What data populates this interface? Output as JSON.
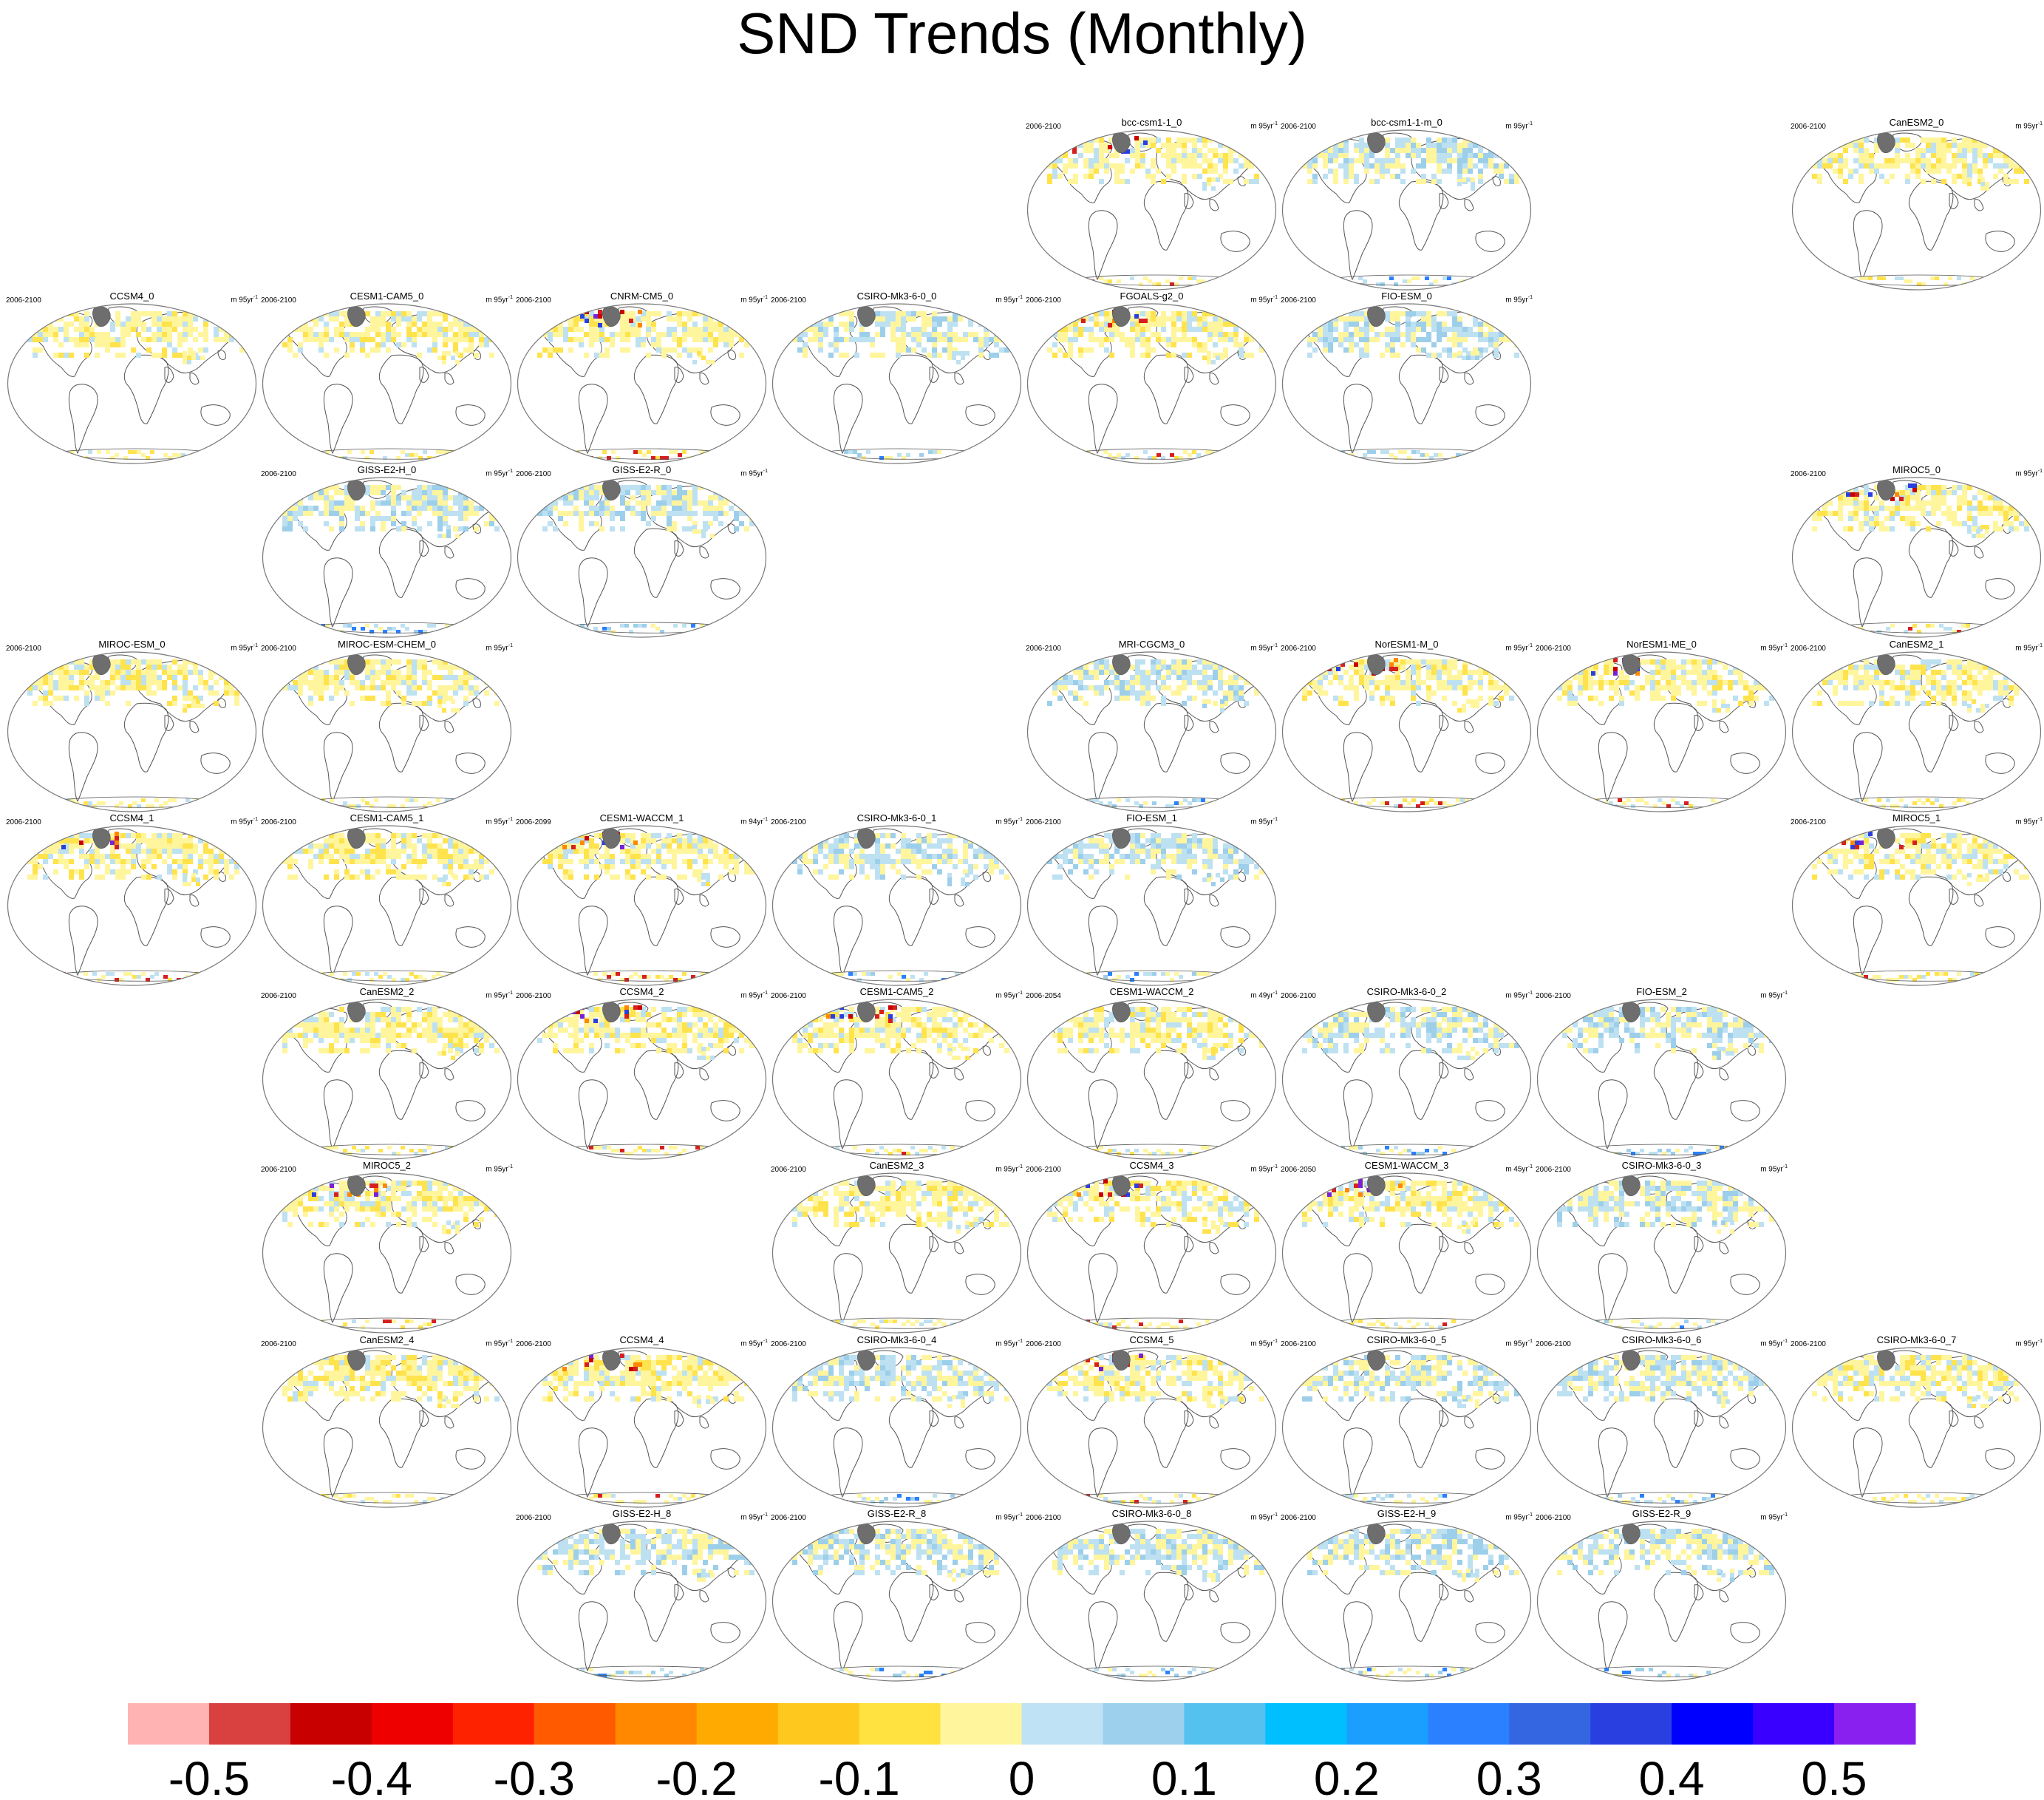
{
  "title": "SND Trends (Monthly)",
  "period_default": "2006-2100",
  "units_default": "m 95yr",
  "units_exp": "-1",
  "colors": {
    "outline": "#777777",
    "land": "#555555",
    "greenland": "#6e6e6e",
    "pale_yellow": "#fff59d",
    "yellow": "#ffe34d",
    "light_blue": "#bee1f2",
    "blue": "#9dcfea",
    "red": "#d62020",
    "purple": "#7a20d8"
  },
  "panels": [
    {
      "title": "bcc-csm1-1_0",
      "row": 0,
      "col": 4,
      "style": "mixedRed"
    },
    {
      "title": "bcc-csm1-1-m_0",
      "row": 0,
      "col": 5,
      "style": "blue"
    },
    {
      "title": "CanESM2_0",
      "row": 0,
      "col": 7,
      "style": "yellow"
    },
    {
      "title": "CCSM4_0",
      "row": 1,
      "col": 0,
      "style": "yellow"
    },
    {
      "title": "CESM1-CAM5_0",
      "row": 1,
      "col": 1,
      "style": "yellow"
    },
    {
      "title": "CNRM-CM5_0",
      "row": 1,
      "col": 2,
      "style": "mixedRed"
    },
    {
      "title": "CSIRO-Mk3-6-0_0",
      "row": 1,
      "col": 3,
      "style": "blue"
    },
    {
      "title": "FGOALS-g2_0",
      "row": 1,
      "col": 4,
      "style": "mixedRed"
    },
    {
      "title": "FIO-ESM_0",
      "row": 1,
      "col": 5,
      "style": "blue"
    },
    {
      "title": "GISS-E2-H_0",
      "row": 2,
      "col": 1,
      "style": "blue"
    },
    {
      "title": "GISS-E2-R_0",
      "row": 2,
      "col": 2,
      "style": "blue"
    },
    {
      "title": "MIROC5_0",
      "row": 2,
      "col": 7,
      "style": "mixedRed"
    },
    {
      "title": "MIROC-ESM_0",
      "row": 3,
      "col": 0,
      "style": "yellow"
    },
    {
      "title": "MIROC-ESM-CHEM_0",
      "row": 3,
      "col": 1,
      "style": "yellow"
    },
    {
      "title": "MRI-CGCM3_0",
      "row": 3,
      "col": 4,
      "style": "blue"
    },
    {
      "title": "NorESM1-M_0",
      "row": 3,
      "col": 5,
      "style": "mixedRed"
    },
    {
      "title": "NorESM1-ME_0",
      "row": 3,
      "col": 6,
      "style": "mixedRed"
    },
    {
      "title": "CanESM2_1",
      "row": 3,
      "col": 7,
      "style": "yellow"
    },
    {
      "title": "CCSM4_1",
      "row": 4,
      "col": 0,
      "style": "mixedRed"
    },
    {
      "title": "CESM1-CAM5_1",
      "row": 4,
      "col": 1,
      "style": "yellow"
    },
    {
      "title": "CESM1-WACCM_1",
      "row": 4,
      "col": 2,
      "style": "mixedRed",
      "period": "2006-2099",
      "units": "m 94yr"
    },
    {
      "title": "CSIRO-Mk3-6-0_1",
      "row": 4,
      "col": 3,
      "style": "blue"
    },
    {
      "title": "FIO-ESM_1",
      "row": 4,
      "col": 4,
      "style": "blue"
    },
    {
      "title": "MIROC5_1",
      "row": 4,
      "col": 7,
      "style": "mixedRed"
    },
    {
      "title": "CanESM2_2",
      "row": 5,
      "col": 1,
      "style": "yellow"
    },
    {
      "title": "CCSM4_2",
      "row": 5,
      "col": 2,
      "style": "mixedRed"
    },
    {
      "title": "CESM1-CAM5_2",
      "row": 5,
      "col": 3,
      "style": "mixedRed"
    },
    {
      "title": "CESM1-WACCM_2",
      "row": 5,
      "col": 4,
      "style": "yellow",
      "period": "2006-2054",
      "units": "m 49yr"
    },
    {
      "title": "CSIRO-Mk3-6-0_2",
      "row": 5,
      "col": 5,
      "style": "blue"
    },
    {
      "title": "FIO-ESM_2",
      "row": 5,
      "col": 6,
      "style": "blue"
    },
    {
      "title": "MIROC5_2",
      "row": 6,
      "col": 1,
      "style": "mixedRed"
    },
    {
      "title": "CanESM2_3",
      "row": 6,
      "col": 3,
      "style": "yellow"
    },
    {
      "title": "CCSM4_3",
      "row": 6,
      "col": 4,
      "style": "mixedRed"
    },
    {
      "title": "CESM1-WACCM_3",
      "row": 6,
      "col": 5,
      "style": "mixedRed",
      "period": "2006-2050",
      "units": "m 45yr"
    },
    {
      "title": "CSIRO-Mk3-6-0_3",
      "row": 6,
      "col": 6,
      "style": "blue"
    },
    {
      "title": "CanESM2_4",
      "row": 7,
      "col": 1,
      "style": "yellow"
    },
    {
      "title": "CCSM4_4",
      "row": 7,
      "col": 2,
      "style": "mixedRed"
    },
    {
      "title": "CSIRO-Mk3-6-0_4",
      "row": 7,
      "col": 3,
      "style": "blue"
    },
    {
      "title": "CCSM4_5",
      "row": 7,
      "col": 4,
      "style": "mixedRed"
    },
    {
      "title": "CSIRO-Mk3-6-0_5",
      "row": 7,
      "col": 5,
      "style": "blue"
    },
    {
      "title": "CSIRO-Mk3-6-0_6",
      "row": 7,
      "col": 6,
      "style": "blue"
    },
    {
      "title": "CSIRO-Mk3-6-0_7",
      "row": 7,
      "col": 7,
      "style": "yellow"
    },
    {
      "title": "GISS-E2-H_8",
      "row": 8,
      "col": 2,
      "style": "blue"
    },
    {
      "title": "GISS-E2-R_8",
      "row": 8,
      "col": 3,
      "style": "blue"
    },
    {
      "title": "CSIRO-Mk3-6-0_8",
      "row": 8,
      "col": 4,
      "style": "blue"
    },
    {
      "title": "GISS-E2-H_9",
      "row": 8,
      "col": 5,
      "style": "blue"
    },
    {
      "title": "GISS-E2-R_9",
      "row": 8,
      "col": 6,
      "style": "blue"
    }
  ],
  "colorbar": {
    "colors": [
      "#ffb3b3",
      "#d94040",
      "#c80000",
      "#ee0000",
      "#ff2200",
      "#ff5a00",
      "#ff8800",
      "#ffaa00",
      "#ffc81e",
      "#ffe140",
      "#fff59d",
      "#bfe3f4",
      "#9dd0ec",
      "#55c1ee",
      "#00bfff",
      "#1a9fff",
      "#2a80ff",
      "#3366e0",
      "#2a3fe0",
      "#0000ff",
      "#3a00ff",
      "#8a20f0"
    ],
    "tick_labels": [
      "-0.5",
      "-0.4",
      "-0.3",
      "-0.2",
      "-0.1",
      "0",
      "0.1",
      "0.2",
      "0.3",
      "0.4",
      "0.5"
    ]
  }
}
